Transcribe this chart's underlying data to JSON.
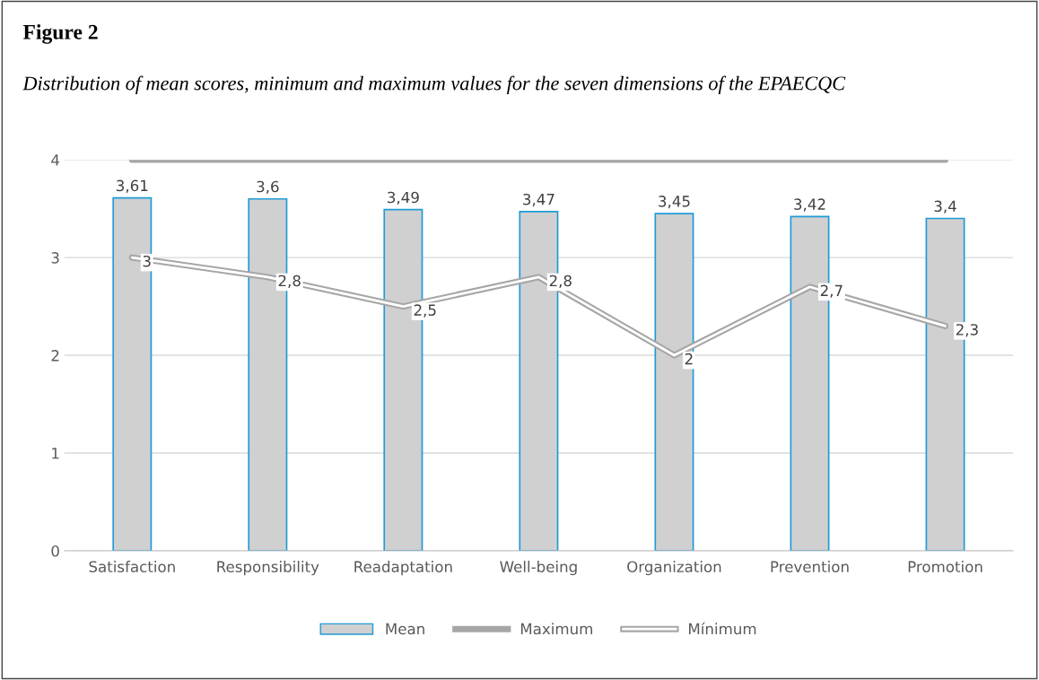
{
  "chart_data": {
    "type": "bar",
    "title": "Figure 2",
    "subtitle": "Distribution of mean scores, minimum and maximum values for the seven dimensions of the EPAECQC",
    "categories": [
      "Satisfaction",
      "Responsibility",
      "Readaptation",
      "Well-being",
      "Organization",
      "Prevention",
      "Promotion"
    ],
    "series": [
      {
        "name": "Mean",
        "color": "#d0d0d0",
        "values": [
          3.61,
          3.6,
          3.49,
          3.47,
          3.45,
          3.42,
          3.4
        ],
        "value_labels": [
          "3,61",
          "3,6",
          "3,49",
          "3,47",
          "3,45",
          "3,42",
          "3,4"
        ]
      },
      {
        "name": "Maximum",
        "type": "line",
        "color": "#a6a6a6",
        "values": [
          4,
          4,
          4,
          4,
          4,
          4,
          4
        ]
      },
      {
        "name": "Mínimum",
        "type": "line",
        "line_style": "solid",
        "color": "#a6a6a6",
        "values": [
          3,
          2.8,
          2.5,
          2.8,
          2,
          2.7,
          2.3
        ],
        "value_labels": [
          "3",
          "2,8",
          "2,5",
          "2,8",
          "2",
          "2,7",
          "2,3"
        ]
      }
    ],
    "ylim": [
      0,
      4
    ],
    "yticks": [
      0,
      1,
      2,
      3,
      4
    ],
    "grid": "y",
    "legend": "bottom",
    "marker": "none"
  }
}
